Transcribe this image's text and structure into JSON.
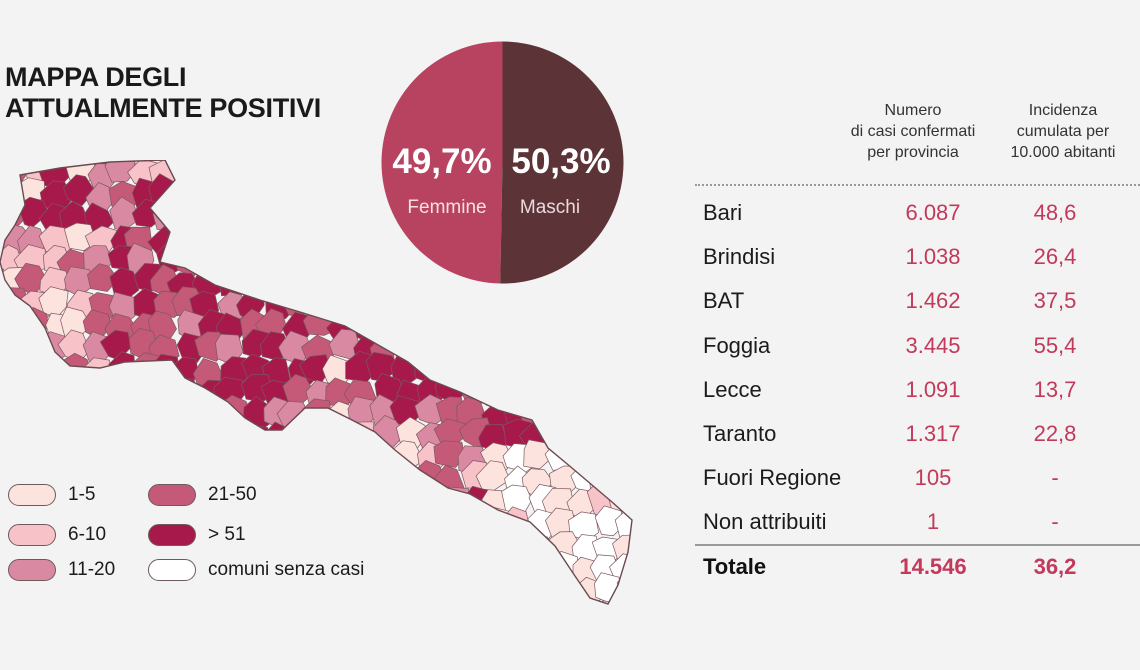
{
  "title": {
    "line1": "MAPPA DEGLI",
    "line2": "ATTUALMENTE POSITIVI"
  },
  "colors": {
    "c1": "#fde3dd",
    "c2": "#f7c2c8",
    "c3": "#d98aa2",
    "c4": "#c45a78",
    "c5": "#a7194a",
    "c0": "#ffffff",
    "female": "#b84360",
    "male": "#5c3438",
    "accent": "#c2395a"
  },
  "legend": [
    {
      "label": "1-5",
      "color": "#fde3dd"
    },
    {
      "label": "6-10",
      "color": "#f7c2c8"
    },
    {
      "label": "11-20",
      "color": "#d98aa2"
    },
    {
      "label": "21-50",
      "color": "#c45a78"
    },
    {
      "label": "> 51",
      "color": "#a7194a"
    },
    {
      "label": "comuni senza casi",
      "color": "#ffffff"
    }
  ],
  "pie": {
    "female_pct": "49,7%",
    "female_label": "Femmine",
    "female_value": 49.7,
    "male_pct": "50,3%",
    "male_label": "Maschi",
    "male_value": 50.3
  },
  "table": {
    "col1_head": [
      "Numero",
      "di casi confermati",
      "per provincia"
    ],
    "col2_head": [
      "Incidenza",
      "cumulata per",
      "10.000 abitanti"
    ],
    "rows": [
      {
        "name": "Bari",
        "cases": "6.087",
        "incidence": "48,6"
      },
      {
        "name": "Brindisi",
        "cases": "1.038",
        "incidence": "26,4"
      },
      {
        "name": "BAT",
        "cases": "1.462",
        "incidence": "37,5"
      },
      {
        "name": "Foggia",
        "cases": "3.445",
        "incidence": "55,4"
      },
      {
        "name": "Lecce",
        "cases": "1.091",
        "incidence": "13,7"
      },
      {
        "name": "Taranto",
        "cases": "1.317",
        "incidence": "22,8"
      },
      {
        "name": "Fuori Regione",
        "cases": "105",
        "incidence": "-"
      },
      {
        "name": "Non attribuiti",
        "cases": "1",
        "incidence": "-"
      }
    ],
    "total": {
      "name": "Totale",
      "cases": "14.546",
      "incidence": "36,2"
    }
  }
}
